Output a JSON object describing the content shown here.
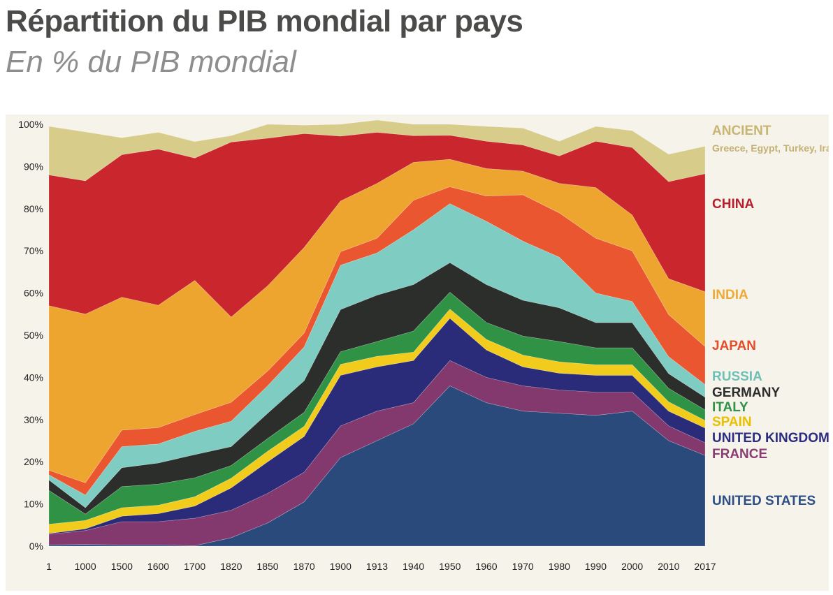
{
  "header": {
    "title": "Répartition du PIB mondial par pays",
    "subtitle": "En % du PIB mondial"
  },
  "chart_data": {
    "type": "area",
    "stacked": true,
    "categories": [
      "1",
      "1000",
      "1500",
      "1600",
      "1700",
      "1820",
      "1850",
      "1870",
      "1900",
      "1913",
      "1940",
      "1950",
      "1960",
      "1970",
      "1980",
      "1990",
      "2000",
      "2010",
      "2017"
    ],
    "ylim": [
      0,
      100
    ],
    "y_ticks": [
      "0%",
      "10%",
      "20%",
      "30%",
      "40%",
      "50%",
      "60%",
      "70%",
      "80%",
      "90%",
      "100%"
    ],
    "legend_position": "right",
    "series": [
      {
        "name": "UNITED STATES",
        "color": "#2b4a7c",
        "label_color": "#2d4f86",
        "values": [
          0.3,
          0.4,
          0.3,
          0.3,
          0.1,
          2.0,
          5.5,
          10.5,
          21,
          25,
          29,
          38,
          34,
          32,
          31.5,
          31,
          32,
          25,
          21.5
        ]
      },
      {
        "name": "FRANCE",
        "color": "#83386e",
        "label_color": "#8a3c74",
        "values": [
          2.5,
          3.3,
          5.5,
          5.5,
          6.5,
          6.5,
          7,
          7,
          7.5,
          7,
          5,
          6,
          6,
          6,
          5.5,
          5.5,
          4.5,
          3.5,
          3
        ]
      },
      {
        "name": "UNITED KINGDOM",
        "color": "#2b2c79",
        "label_color": "#2c2d80",
        "values": [
          0.2,
          0.4,
          1.3,
          1.9,
          2.9,
          5.3,
          7.5,
          8.5,
          12,
          10.5,
          10,
          10,
          6.5,
          4.5,
          4,
          4,
          4,
          3.5,
          3.5
        ]
      },
      {
        "name": "SPAIN",
        "color": "#f2cc1c",
        "label_color": "#e9c000",
        "values": [
          2.2,
          2,
          2,
          2,
          2.2,
          2.3,
          2.5,
          2.4,
          2.6,
          2.5,
          2,
          2.2,
          2.5,
          2.8,
          2.7,
          2.5,
          2.5,
          2.2,
          1.8
        ]
      },
      {
        "name": "ITALY",
        "color": "#2f9245",
        "label_color": "#2f9245",
        "values": [
          8,
          1.5,
          5,
          5,
          4.5,
          3,
          3,
          3.3,
          3,
          3.5,
          5,
          4,
          4,
          4.5,
          4.8,
          4,
          4,
          3.2,
          2.5
        ]
      },
      {
        "name": "GERMANY",
        "color": "#2c2e2b",
        "label_color": "#2b2b2b",
        "values": [
          2.5,
          1.5,
          4.5,
          5,
          5.5,
          4.5,
          6,
          7.5,
          10,
          11,
          11,
          7,
          9,
          8.5,
          8,
          6,
          6,
          3.5,
          3
        ]
      },
      {
        "name": "RUSSIA",
        "color": "#7fccc2",
        "label_color": "#6cc1b6",
        "values": [
          1.2,
          3,
          5,
          4.5,
          5.5,
          6,
          6.5,
          8,
          10.5,
          10,
          13,
          14,
          15,
          14,
          12,
          7,
          5,
          4,
          3
        ]
      },
      {
        "name": "JAPAN",
        "color": "#ea5630",
        "label_color": "#e24e2b",
        "values": [
          1.1,
          2.9,
          3.9,
          3.9,
          4,
          4.5,
          3.5,
          3.3,
          3.2,
          3.5,
          7,
          4,
          6,
          11,
          10.5,
          13,
          12,
          10,
          9
        ]
      },
      {
        "name": "INDIA",
        "color": "#eea52f",
        "label_color": "#eeaa35",
        "values": [
          39,
          40,
          31.5,
          29,
          31.8,
          20.2,
          20.2,
          20.3,
          12,
          13,
          9,
          6.5,
          6.5,
          5.6,
          7,
          12,
          8.5,
          8.5,
          13
        ],
        "note": "computed as remainder below China"
      },
      {
        "name": "CHINA",
        "color": "#c9262d",
        "label_color": "#b51e2b",
        "values": [
          31,
          31.6,
          33.8,
          37,
          29,
          41.5,
          35,
          27,
          15.4,
          12.1,
          6.3,
          5.7,
          6.5,
          6.2,
          6.5,
          11,
          16,
          23,
          28
        ]
      },
      {
        "name": "ANCIENT",
        "color": "#d8cc8a",
        "label_color": "#c9b572",
        "sublabel": "Greece, Egypt, Turkey, Iran",
        "sublabel_color": "#c4b274",
        "values": [
          11.5,
          11.6,
          4,
          4,
          3.9,
          1.5,
          3.3,
          2.0,
          2.8,
          2.9,
          2.7,
          2.6,
          3.5,
          4.0,
          3.5,
          3.5,
          4.0,
          6.5,
          6.5
        ]
      }
    ]
  }
}
